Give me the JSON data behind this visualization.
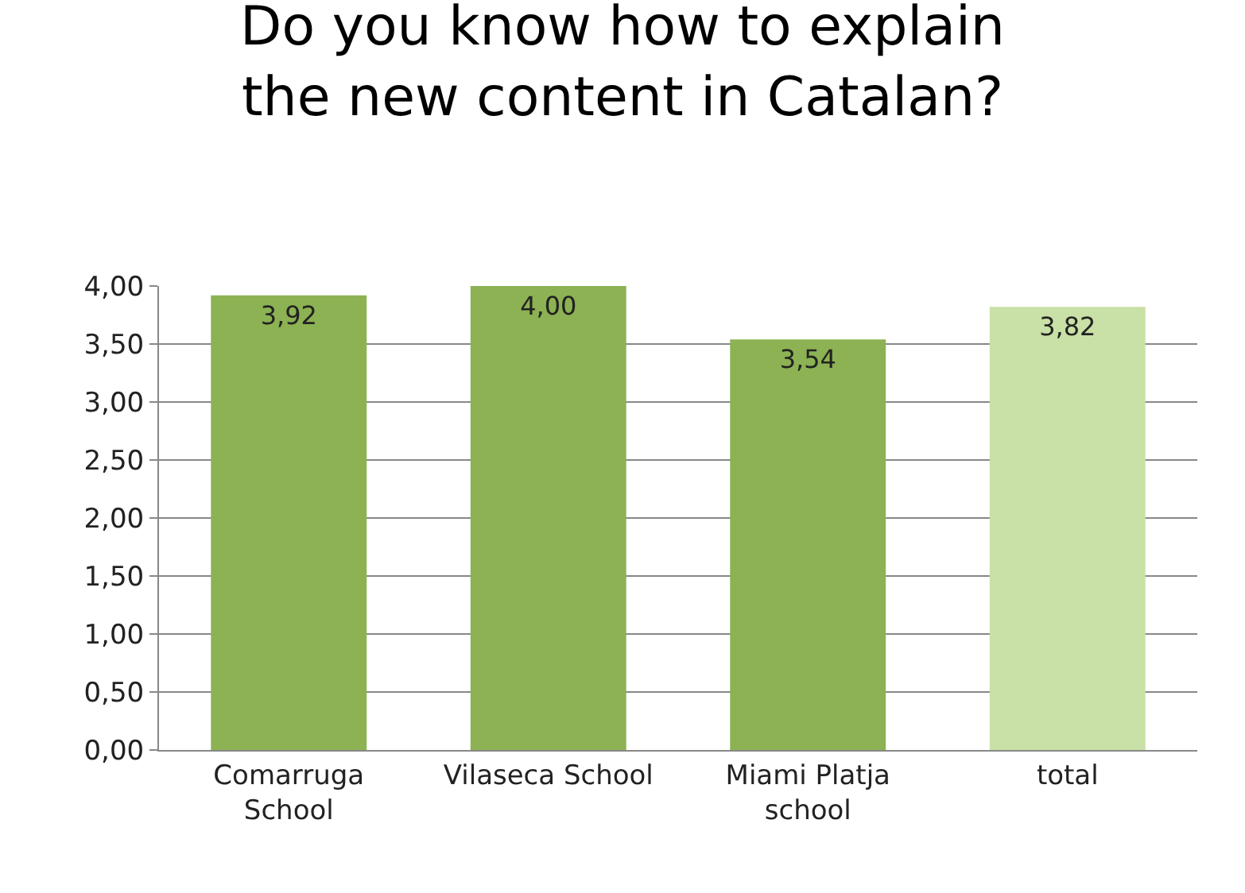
{
  "chart_data": {
    "type": "bar",
    "title": "Do you know how to explain\nthe new content in Catalan?",
    "categories": [
      "Comarruga\nSchool",
      "Vilaseca School",
      "Miami Platja\nschool",
      "total"
    ],
    "values": [
      3.92,
      4.0,
      3.54,
      3.82
    ],
    "colors": [
      "#8cb253",
      "#8cb253",
      "#8cb253",
      "#c9e0a6"
    ],
    "value_labels": [
      "3,92",
      "4,00",
      "3,54",
      "3,82"
    ],
    "ylim": [
      0,
      4
    ],
    "yticks": [
      {
        "value": 0,
        "label": "0,00"
      },
      {
        "value": 0.5,
        "label": "0,50"
      },
      {
        "value": 1,
        "label": "1,00"
      },
      {
        "value": 1.5,
        "label": "1,50"
      },
      {
        "value": 2,
        "label": "2,00"
      },
      {
        "value": 2.5,
        "label": "2,50"
      },
      {
        "value": 3,
        "label": "3,00"
      },
      {
        "value": 3.5,
        "label": "3,50"
      },
      {
        "value": 4,
        "label": "4,00"
      }
    ],
    "grid": "y"
  }
}
